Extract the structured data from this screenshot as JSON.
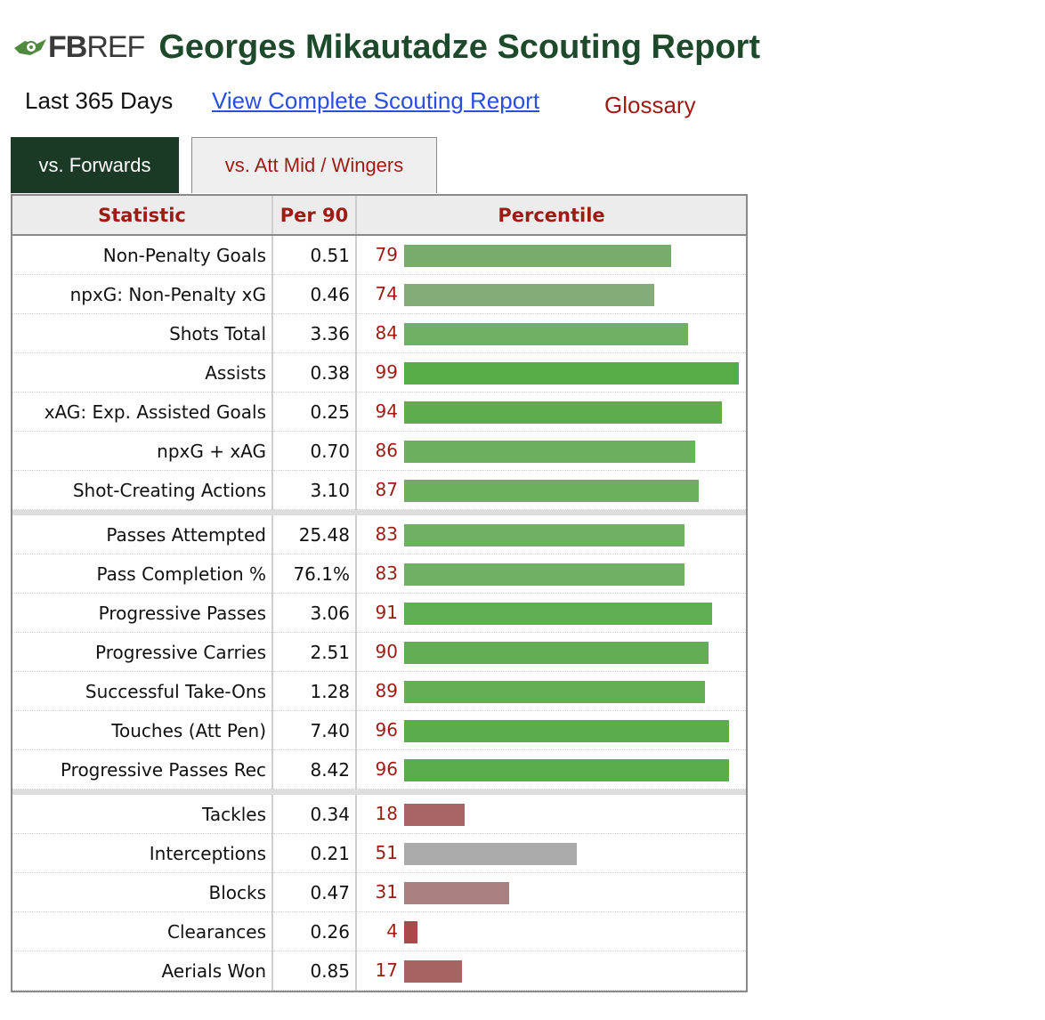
{
  "logo": {
    "text_bold": "FB",
    "text_light": "REF"
  },
  "page": {
    "title": "Georges Mikautadze Scouting Report"
  },
  "subnav": {
    "period": "Last 365 Days",
    "complete_link": "View Complete Scouting Report",
    "glossary": "Glossary"
  },
  "tabs": [
    {
      "label": "vs. Forwards",
      "active": true
    },
    {
      "label": "vs. Att Mid / Wingers",
      "active": false
    }
  ],
  "table": {
    "headers": {
      "statistic": "Statistic",
      "per90": "Per 90",
      "percentile": "Percentile"
    },
    "groups": [
      [
        {
          "stat": "Non-Penalty Goals",
          "per90": "0.51",
          "pct": 79,
          "color": "#77ac6b"
        },
        {
          "stat": "npxG: Non-Penalty xG",
          "per90": "0.46",
          "pct": 74,
          "color": "#84ac78"
        },
        {
          "stat": "Shots Total",
          "per90": "3.36",
          "pct": 84,
          "color": "#6fb063"
        },
        {
          "stat": "Assists",
          "per90": "0.38",
          "pct": 99,
          "color": "#58ac47"
        },
        {
          "stat": "xAG: Exp. Assisted Goals",
          "per90": "0.25",
          "pct": 94,
          "color": "#5dac4d"
        },
        {
          "stat": "npxG + xAG",
          "per90": "0.70",
          "pct": 86,
          "color": "#6bb05f"
        },
        {
          "stat": "Shot-Creating Actions",
          "per90": "3.10",
          "pct": 87,
          "color": "#6ab05d"
        }
      ],
      [
        {
          "stat": "Passes Attempted",
          "per90": "25.48",
          "pct": 83,
          "color": "#70b064"
        },
        {
          "stat": "Pass Completion %",
          "per90": "76.1%",
          "pct": 83,
          "color": "#70b064"
        },
        {
          "stat": "Progressive Passes",
          "per90": "3.06",
          "pct": 91,
          "color": "#62ae54"
        },
        {
          "stat": "Progressive Carries",
          "per90": "2.51",
          "pct": 90,
          "color": "#63ae55"
        },
        {
          "stat": "Successful Take-Ons",
          "per90": "1.28",
          "pct": 89,
          "color": "#65ae57"
        },
        {
          "stat": "Touches (Att Pen)",
          "per90": "7.40",
          "pct": 96,
          "color": "#5bac4b"
        },
        {
          "stat": "Progressive Passes Rec",
          "per90": "8.42",
          "pct": 96,
          "color": "#5bac4b"
        }
      ],
      [
        {
          "stat": "Tackles",
          "per90": "0.34",
          "pct": 18,
          "color": "#a86464"
        },
        {
          "stat": "Interceptions",
          "per90": "0.21",
          "pct": 51,
          "color": "#ababab"
        },
        {
          "stat": "Blocks",
          "per90": "0.47",
          "pct": 31,
          "color": "#a88080"
        },
        {
          "stat": "Clearances",
          "per90": "0.26",
          "pct": 4,
          "color": "#a84a4a"
        },
        {
          "stat": "Aerials Won",
          "per90": "0.85",
          "pct": 17,
          "color": "#a86262"
        }
      ]
    ]
  }
}
